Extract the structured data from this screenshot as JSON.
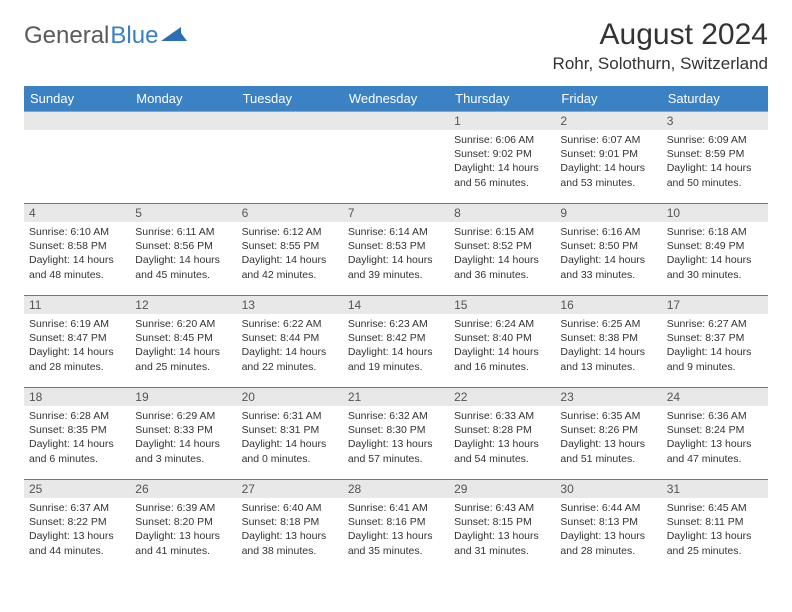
{
  "logo": {
    "general": "General",
    "blue": "Blue"
  },
  "title": "August 2024",
  "location": "Rohr, Solothurn, Switzerland",
  "colors": {
    "header_bg": "#3a82c4",
    "header_text": "#ffffff",
    "daynum_bg": "#e8e8e8",
    "border": "#3a82c4",
    "text": "#333333",
    "logo_blue": "#3a7fc4"
  },
  "daysOfWeek": [
    "Sunday",
    "Monday",
    "Tuesday",
    "Wednesday",
    "Thursday",
    "Friday",
    "Saturday"
  ],
  "weeks": [
    [
      null,
      null,
      null,
      null,
      {
        "n": "1",
        "sunrise": "Sunrise: 6:06 AM",
        "sunset": "Sunset: 9:02 PM",
        "day1": "Daylight: 14 hours",
        "day2": "and 56 minutes."
      },
      {
        "n": "2",
        "sunrise": "Sunrise: 6:07 AM",
        "sunset": "Sunset: 9:01 PM",
        "day1": "Daylight: 14 hours",
        "day2": "and 53 minutes."
      },
      {
        "n": "3",
        "sunrise": "Sunrise: 6:09 AM",
        "sunset": "Sunset: 8:59 PM",
        "day1": "Daylight: 14 hours",
        "day2": "and 50 minutes."
      }
    ],
    [
      {
        "n": "4",
        "sunrise": "Sunrise: 6:10 AM",
        "sunset": "Sunset: 8:58 PM",
        "day1": "Daylight: 14 hours",
        "day2": "and 48 minutes."
      },
      {
        "n": "5",
        "sunrise": "Sunrise: 6:11 AM",
        "sunset": "Sunset: 8:56 PM",
        "day1": "Daylight: 14 hours",
        "day2": "and 45 minutes."
      },
      {
        "n": "6",
        "sunrise": "Sunrise: 6:12 AM",
        "sunset": "Sunset: 8:55 PM",
        "day1": "Daylight: 14 hours",
        "day2": "and 42 minutes."
      },
      {
        "n": "7",
        "sunrise": "Sunrise: 6:14 AM",
        "sunset": "Sunset: 8:53 PM",
        "day1": "Daylight: 14 hours",
        "day2": "and 39 minutes."
      },
      {
        "n": "8",
        "sunrise": "Sunrise: 6:15 AM",
        "sunset": "Sunset: 8:52 PM",
        "day1": "Daylight: 14 hours",
        "day2": "and 36 minutes."
      },
      {
        "n": "9",
        "sunrise": "Sunrise: 6:16 AM",
        "sunset": "Sunset: 8:50 PM",
        "day1": "Daylight: 14 hours",
        "day2": "and 33 minutes."
      },
      {
        "n": "10",
        "sunrise": "Sunrise: 6:18 AM",
        "sunset": "Sunset: 8:49 PM",
        "day1": "Daylight: 14 hours",
        "day2": "and 30 minutes."
      }
    ],
    [
      {
        "n": "11",
        "sunrise": "Sunrise: 6:19 AM",
        "sunset": "Sunset: 8:47 PM",
        "day1": "Daylight: 14 hours",
        "day2": "and 28 minutes."
      },
      {
        "n": "12",
        "sunrise": "Sunrise: 6:20 AM",
        "sunset": "Sunset: 8:45 PM",
        "day1": "Daylight: 14 hours",
        "day2": "and 25 minutes."
      },
      {
        "n": "13",
        "sunrise": "Sunrise: 6:22 AM",
        "sunset": "Sunset: 8:44 PM",
        "day1": "Daylight: 14 hours",
        "day2": "and 22 minutes."
      },
      {
        "n": "14",
        "sunrise": "Sunrise: 6:23 AM",
        "sunset": "Sunset: 8:42 PM",
        "day1": "Daylight: 14 hours",
        "day2": "and 19 minutes."
      },
      {
        "n": "15",
        "sunrise": "Sunrise: 6:24 AM",
        "sunset": "Sunset: 8:40 PM",
        "day1": "Daylight: 14 hours",
        "day2": "and 16 minutes."
      },
      {
        "n": "16",
        "sunrise": "Sunrise: 6:25 AM",
        "sunset": "Sunset: 8:38 PM",
        "day1": "Daylight: 14 hours",
        "day2": "and 13 minutes."
      },
      {
        "n": "17",
        "sunrise": "Sunrise: 6:27 AM",
        "sunset": "Sunset: 8:37 PM",
        "day1": "Daylight: 14 hours",
        "day2": "and 9 minutes."
      }
    ],
    [
      {
        "n": "18",
        "sunrise": "Sunrise: 6:28 AM",
        "sunset": "Sunset: 8:35 PM",
        "day1": "Daylight: 14 hours",
        "day2": "and 6 minutes."
      },
      {
        "n": "19",
        "sunrise": "Sunrise: 6:29 AM",
        "sunset": "Sunset: 8:33 PM",
        "day1": "Daylight: 14 hours",
        "day2": "and 3 minutes."
      },
      {
        "n": "20",
        "sunrise": "Sunrise: 6:31 AM",
        "sunset": "Sunset: 8:31 PM",
        "day1": "Daylight: 14 hours",
        "day2": "and 0 minutes."
      },
      {
        "n": "21",
        "sunrise": "Sunrise: 6:32 AM",
        "sunset": "Sunset: 8:30 PM",
        "day1": "Daylight: 13 hours",
        "day2": "and 57 minutes."
      },
      {
        "n": "22",
        "sunrise": "Sunrise: 6:33 AM",
        "sunset": "Sunset: 8:28 PM",
        "day1": "Daylight: 13 hours",
        "day2": "and 54 minutes."
      },
      {
        "n": "23",
        "sunrise": "Sunrise: 6:35 AM",
        "sunset": "Sunset: 8:26 PM",
        "day1": "Daylight: 13 hours",
        "day2": "and 51 minutes."
      },
      {
        "n": "24",
        "sunrise": "Sunrise: 6:36 AM",
        "sunset": "Sunset: 8:24 PM",
        "day1": "Daylight: 13 hours",
        "day2": "and 47 minutes."
      }
    ],
    [
      {
        "n": "25",
        "sunrise": "Sunrise: 6:37 AM",
        "sunset": "Sunset: 8:22 PM",
        "day1": "Daylight: 13 hours",
        "day2": "and 44 minutes."
      },
      {
        "n": "26",
        "sunrise": "Sunrise: 6:39 AM",
        "sunset": "Sunset: 8:20 PM",
        "day1": "Daylight: 13 hours",
        "day2": "and 41 minutes."
      },
      {
        "n": "27",
        "sunrise": "Sunrise: 6:40 AM",
        "sunset": "Sunset: 8:18 PM",
        "day1": "Daylight: 13 hours",
        "day2": "and 38 minutes."
      },
      {
        "n": "28",
        "sunrise": "Sunrise: 6:41 AM",
        "sunset": "Sunset: 8:16 PM",
        "day1": "Daylight: 13 hours",
        "day2": "and 35 minutes."
      },
      {
        "n": "29",
        "sunrise": "Sunrise: 6:43 AM",
        "sunset": "Sunset: 8:15 PM",
        "day1": "Daylight: 13 hours",
        "day2": "and 31 minutes."
      },
      {
        "n": "30",
        "sunrise": "Sunrise: 6:44 AM",
        "sunset": "Sunset: 8:13 PM",
        "day1": "Daylight: 13 hours",
        "day2": "and 28 minutes."
      },
      {
        "n": "31",
        "sunrise": "Sunrise: 6:45 AM",
        "sunset": "Sunset: 8:11 PM",
        "day1": "Daylight: 13 hours",
        "day2": "and 25 minutes."
      }
    ]
  ]
}
